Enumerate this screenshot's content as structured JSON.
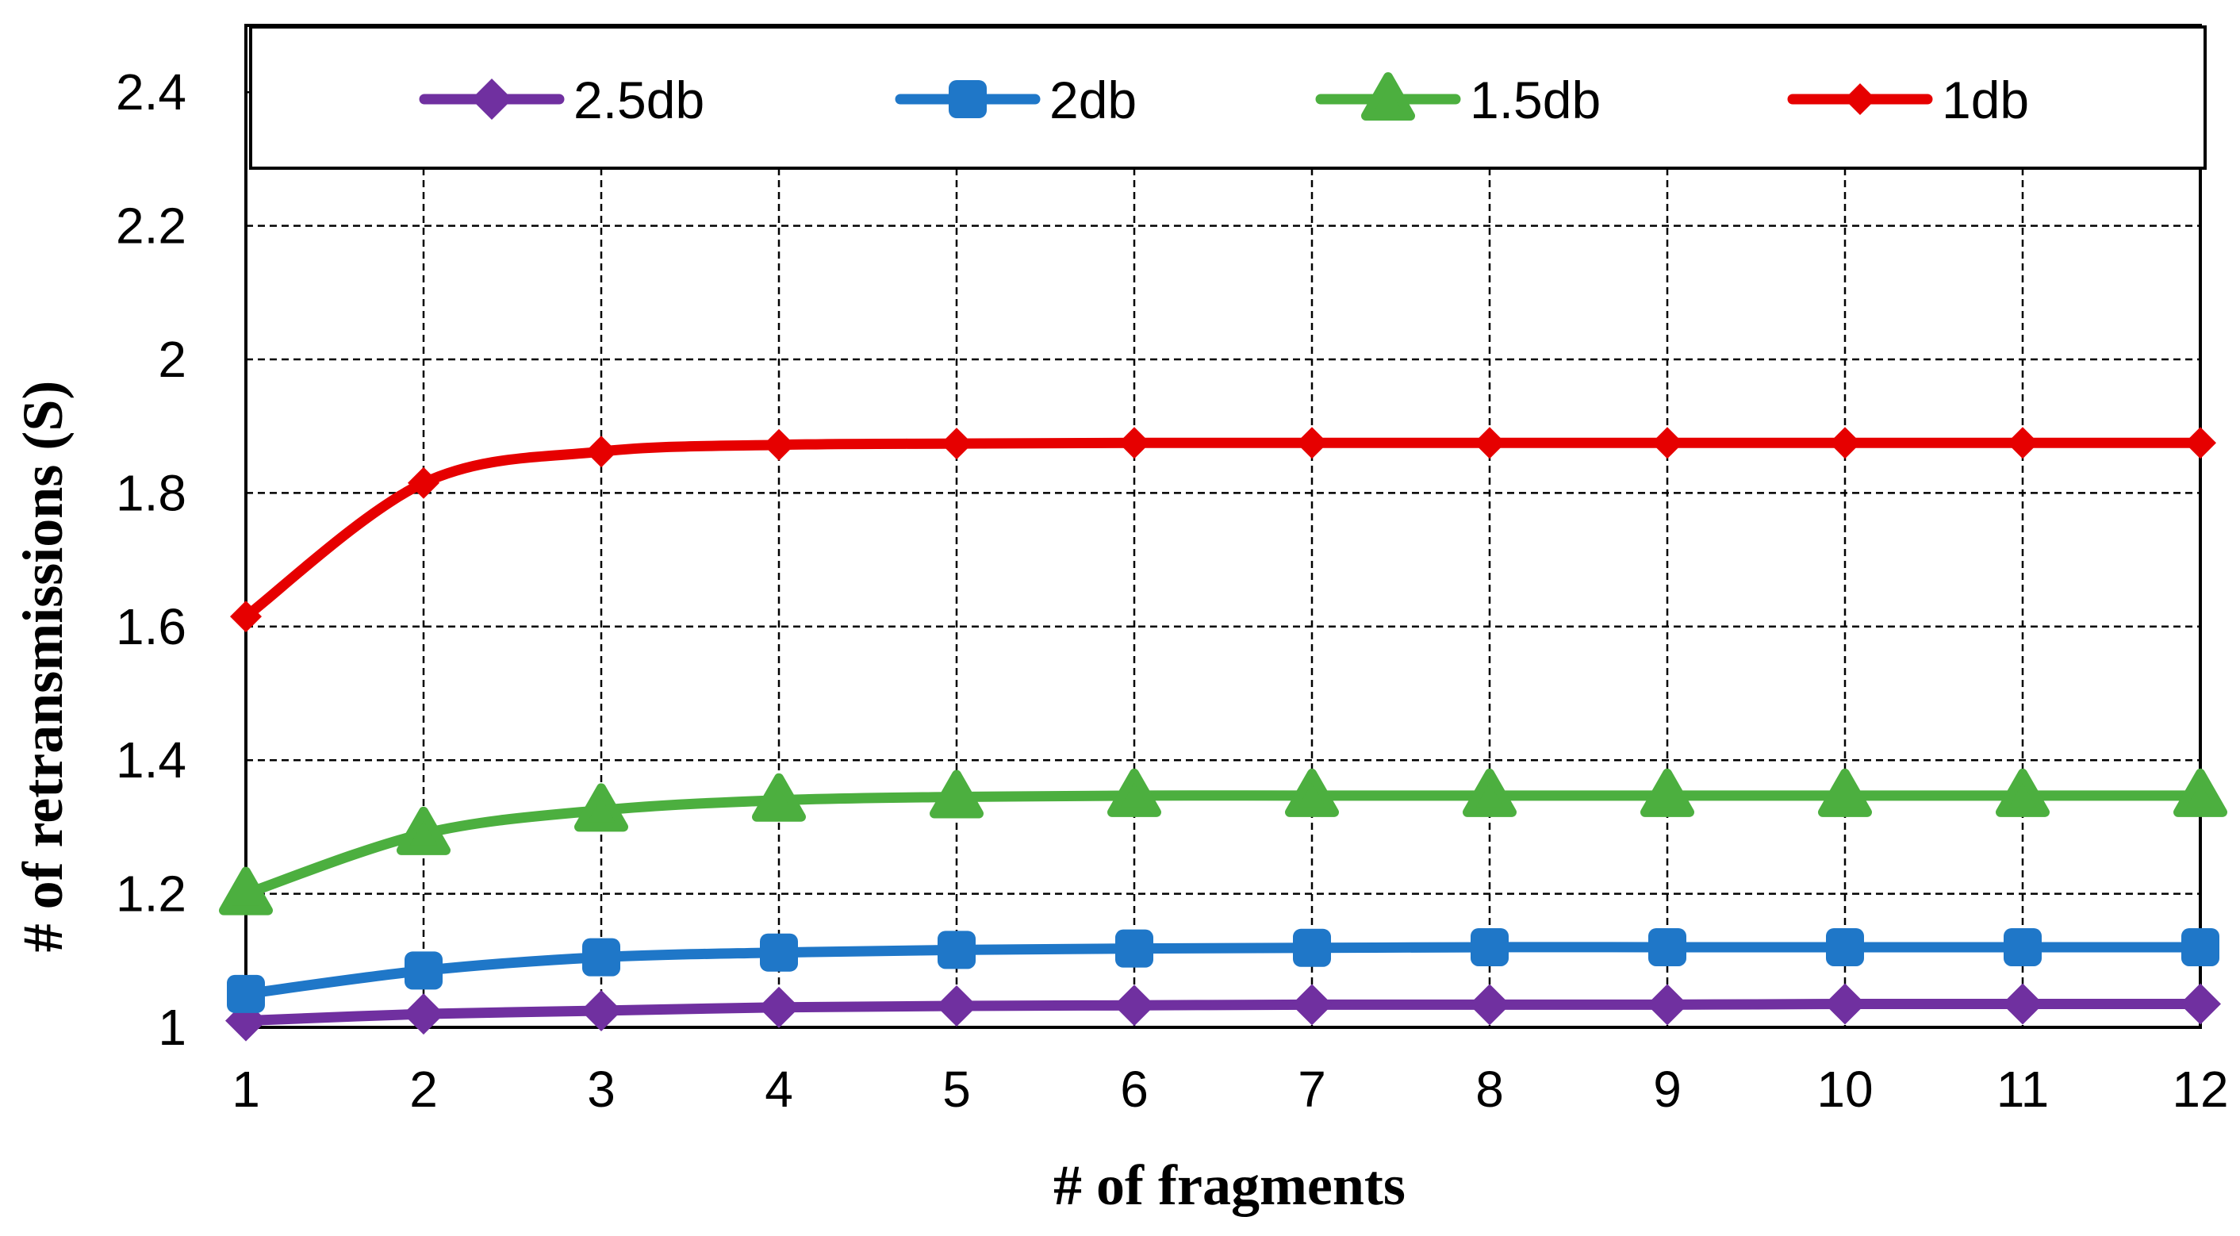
{
  "chart_data": {
    "type": "line",
    "xlabel": "# of fragments",
    "ylabel": "# of retransmissions (S)",
    "x": [
      1,
      2,
      3,
      4,
      5,
      6,
      7,
      8,
      9,
      10,
      11,
      12
    ],
    "xlim": [
      1,
      12
    ],
    "ylim": [
      1,
      2.5
    ],
    "yticks": [
      "1",
      "1.2",
      "1.4",
      "1.6",
      "1.8",
      "2",
      "2.2",
      "2.4"
    ],
    "grid": true,
    "smooth": true,
    "legend_position": "top",
    "series": [
      {
        "name": "2.5db",
        "color": "#7030a0",
        "marker": "diamond",
        "values": [
          1.01,
          1.02,
          1.025,
          1.03,
          1.032,
          1.033,
          1.034,
          1.034,
          1.034,
          1.035,
          1.035,
          1.035
        ]
      },
      {
        "name": "2db",
        "color": "#1f77c8",
        "marker": "square",
        "values": [
          1.05,
          1.085,
          1.105,
          1.112,
          1.116,
          1.118,
          1.119,
          1.12,
          1.12,
          1.12,
          1.12,
          1.12
        ]
      },
      {
        "name": "1.5db",
        "color": "#4caf3f",
        "marker": "triangle",
        "values": [
          1.2,
          1.29,
          1.325,
          1.34,
          1.345,
          1.347,
          1.347,
          1.347,
          1.347,
          1.347,
          1.347,
          1.347
        ]
      },
      {
        "name": "1db",
        "color": "#e60000",
        "marker": "diamond-small",
        "values": [
          1.615,
          1.815,
          1.862,
          1.872,
          1.874,
          1.875,
          1.875,
          1.875,
          1.875,
          1.875,
          1.875,
          1.875
        ]
      }
    ]
  }
}
